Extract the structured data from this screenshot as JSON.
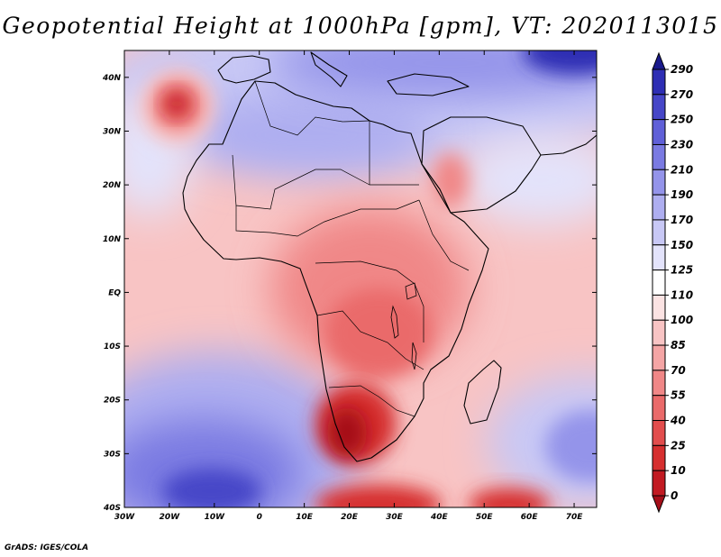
{
  "title": "Geopotential Height at 1000hPa [gpm], VT: 2020113015",
  "footer": "GrADS: IGES/COLA",
  "map": {
    "lon_range": [
      -30,
      75
    ],
    "lat_range": [
      -40,
      45
    ],
    "x_ticks": [
      {
        "value": -30,
        "label": "30W"
      },
      {
        "value": -20,
        "label": "20W"
      },
      {
        "value": -10,
        "label": "10W"
      },
      {
        "value": 0,
        "label": "0"
      },
      {
        "value": 10,
        "label": "10E"
      },
      {
        "value": 20,
        "label": "20E"
      },
      {
        "value": 30,
        "label": "30E"
      },
      {
        "value": 40,
        "label": "40E"
      },
      {
        "value": 50,
        "label": "50E"
      },
      {
        "value": 60,
        "label": "60E"
      },
      {
        "value": 70,
        "label": "70E"
      }
    ],
    "y_ticks": [
      {
        "value": 40,
        "label": "40N"
      },
      {
        "value": 30,
        "label": "30N"
      },
      {
        "value": 20,
        "label": "20N"
      },
      {
        "value": 10,
        "label": "10N"
      },
      {
        "value": 0,
        "label": "EQ"
      },
      {
        "value": -10,
        "label": "10S"
      },
      {
        "value": -20,
        "label": "20S"
      },
      {
        "value": -30,
        "label": "30S"
      },
      {
        "value": -40,
        "label": "40S"
      }
    ]
  },
  "colorbar": {
    "levels": [
      "0",
      "10",
      "25",
      "40",
      "55",
      "70",
      "85",
      "100",
      "110",
      "125",
      "150",
      "170",
      "190",
      "210",
      "230",
      "250",
      "270",
      "290"
    ],
    "colors": [
      "#a50e19",
      "#c21a22",
      "#d62f2f",
      "#e24d4d",
      "#ea6a6a",
      "#f08787",
      "#f4a5a5",
      "#f8c4c4",
      "#fbe3e3",
      "#ffffff",
      "#e3e3fb",
      "#c8c8f5",
      "#aeaef0",
      "#9494ea",
      "#7a7ae2",
      "#6060d8",
      "#4646c8",
      "#2e2eb4",
      "#1a1a8c"
    ]
  }
}
